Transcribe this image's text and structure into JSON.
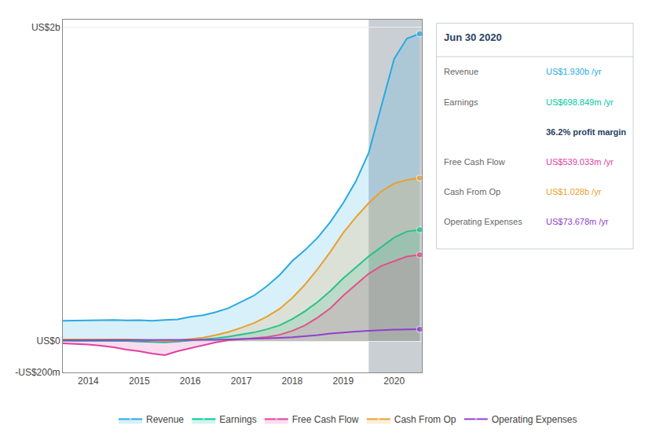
{
  "chart_data": {
    "type": "line",
    "x": [
      2013.5,
      2013.75,
      2014.0,
      2014.25,
      2014.5,
      2014.75,
      2015.0,
      2015.25,
      2015.5,
      2015.75,
      2016.0,
      2016.25,
      2016.5,
      2016.75,
      2017.0,
      2017.25,
      2017.5,
      2017.75,
      2018.0,
      2018.25,
      2018.5,
      2018.75,
      2019.0,
      2019.25,
      2019.5,
      2019.75,
      2020.0,
      2020.25,
      2020.5
    ],
    "series": [
      {
        "name": "Revenue",
        "type": "area",
        "color": "#29aae1",
        "values": [
          130,
          130,
          132,
          133,
          135,
          132,
          133,
          130,
          135,
          138,
          155,
          165,
          185,
          210,
          250,
          290,
          350,
          420,
          510,
          580,
          660,
          760,
          880,
          1020,
          1200,
          1500,
          1800,
          1930,
          1960
        ]
      },
      {
        "name": "Earnings",
        "type": "area",
        "color": "#00c8a0",
        "values": [
          2,
          2,
          2,
          2,
          1,
          0,
          -3,
          -5,
          -8,
          -3,
          3,
          10,
          18,
          28,
          40,
          55,
          75,
          100,
          140,
          190,
          250,
          320,
          400,
          470,
          540,
          600,
          660,
          699,
          710
        ]
      },
      {
        "name": "Free Cash Flow",
        "type": "area",
        "color": "#e040a0",
        "values": [
          -15,
          -18,
          -22,
          -30,
          -40,
          -55,
          -65,
          -80,
          -90,
          -65,
          -45,
          -25,
          -8,
          5,
          12,
          18,
          25,
          40,
          65,
          100,
          150,
          210,
          290,
          360,
          430,
          480,
          510,
          539,
          550
        ]
      },
      {
        "name": "Cash From Op",
        "type": "area",
        "color": "#e8a030",
        "values": [
          10,
          10,
          12,
          12,
          12,
          10,
          8,
          4,
          0,
          4,
          12,
          22,
          38,
          58,
          85,
          115,
          155,
          205,
          275,
          360,
          460,
          570,
          690,
          790,
          880,
          955,
          1005,
          1028,
          1040
        ]
      },
      {
        "name": "Operating Expenses",
        "type": "line",
        "color": "#9040d0",
        "values": [
          5,
          5,
          5,
          5,
          5,
          5,
          5,
          5,
          5,
          5,
          6,
          7,
          8,
          10,
          12,
          14,
          17,
          20,
          24,
          30,
          38,
          48,
          55,
          60,
          65,
          70,
          73,
          74,
          75
        ]
      }
    ],
    "xlim": [
      2013.5,
      2020.55
    ],
    "xticks": [
      2014,
      2015,
      2016,
      2017,
      2018,
      2019,
      2020
    ],
    "ylim": [
      -200,
      2050
    ],
    "yticks": [
      {
        "value": -200,
        "label": "-US$200m"
      },
      {
        "value": 0,
        "label": "US$0"
      },
      {
        "value": 2000,
        "label": "US$2b"
      }
    ],
    "grid": true,
    "legend": "bottom",
    "highlight_range": [
      2019.5,
      2020.55
    ],
    "highlight_color": "#2a3f55",
    "info_box": {
      "title": "Jun 30 2020",
      "rows": [
        {
          "label": "Revenue",
          "value": "US$1.930b /yr"
        },
        {
          "label": "Earnings",
          "value": "US$698.849m /yr"
        },
        {
          "value": "36.2% profit margin"
        },
        {
          "label": "Free Cash Flow",
          "value": "US$539.033m /yr"
        },
        {
          "label": "Cash From Op",
          "value": "US$1.028b /yr"
        },
        {
          "label": "Operating Expenses",
          "value": "US$73.678m /yr"
        }
      ]
    }
  }
}
